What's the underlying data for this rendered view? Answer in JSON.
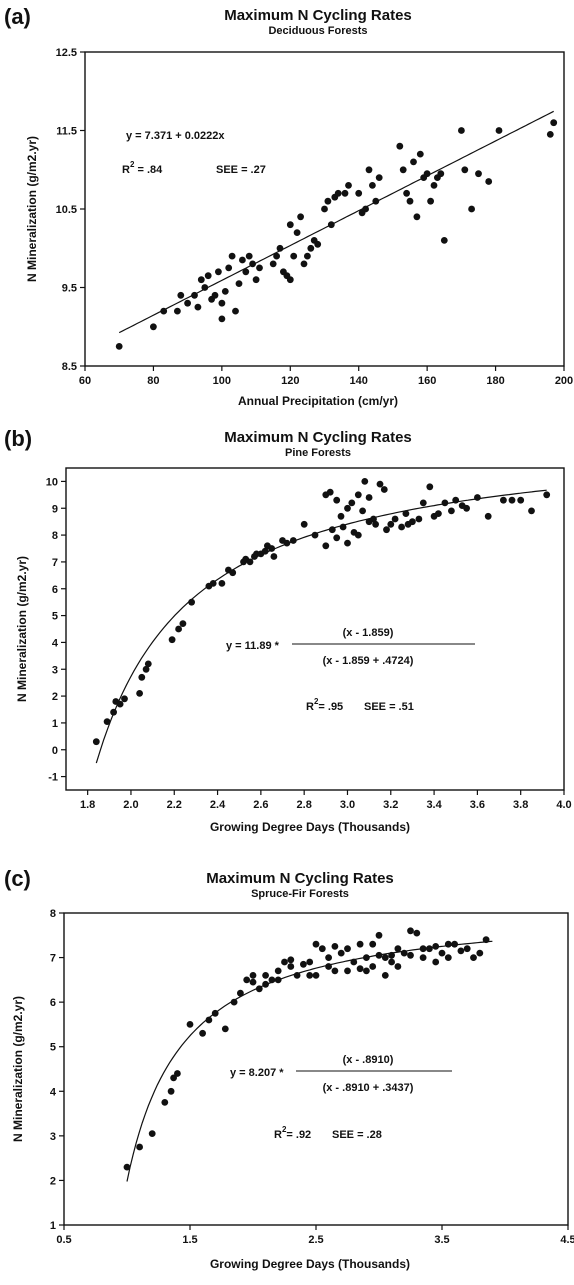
{
  "chart_data": [
    {
      "type": "scatter",
      "panel_label": "(a)",
      "title": "Maximum N Cycling Rates",
      "subtitle": "Deciduous Forests",
      "xlabel": "Annual Precipitation (cm/yr)",
      "ylabel": "N Mineralization (g/m2.yr)",
      "xlim": [
        60,
        200
      ],
      "ylim": [
        8.5,
        12.5
      ],
      "xticks": [
        60,
        80,
        100,
        120,
        140,
        160,
        180,
        200
      ],
      "yticks": [
        8.5,
        9.5,
        10.5,
        11.5,
        12.5
      ],
      "xtick_labels": [
        "60",
        "80",
        "100",
        "120",
        "140",
        "160",
        "180",
        "200"
      ],
      "ytick_labels": [
        "8.5",
        "9.5",
        "10.5",
        "11.5",
        "12.5"
      ],
      "equation": "y = 7.371 + 0.0222x",
      "r2_label": "R",
      "r2_sup": "2",
      "r2_value": " = .84",
      "see": "SEE = .27",
      "fit": {
        "kind": "linear",
        "intercept": 7.371,
        "slope": 0.0222,
        "x_range": [
          70,
          197
        ]
      },
      "points": [
        [
          70,
          8.75
        ],
        [
          80,
          9.0
        ],
        [
          83,
          9.2
        ],
        [
          87,
          9.2
        ],
        [
          88,
          9.4
        ],
        [
          90,
          9.3
        ],
        [
          92,
          9.4
        ],
        [
          93,
          9.25
        ],
        [
          94,
          9.6
        ],
        [
          95,
          9.5
        ],
        [
          96,
          9.65
        ],
        [
          97,
          9.35
        ],
        [
          98,
          9.4
        ],
        [
          99,
          9.7
        ],
        [
          100,
          9.1
        ],
        [
          100,
          9.3
        ],
        [
          101,
          9.45
        ],
        [
          102,
          9.75
        ],
        [
          103,
          9.9
        ],
        [
          104,
          9.2
        ],
        [
          105,
          9.55
        ],
        [
          106,
          9.85
        ],
        [
          107,
          9.7
        ],
        [
          108,
          9.9
        ],
        [
          109,
          9.8
        ],
        [
          110,
          9.6
        ],
        [
          111,
          9.75
        ],
        [
          115,
          9.8
        ],
        [
          116,
          9.9
        ],
        [
          117,
          10.0
        ],
        [
          118,
          9.7
        ],
        [
          119,
          9.65
        ],
        [
          120,
          9.6
        ],
        [
          120,
          10.3
        ],
        [
          121,
          9.9
        ],
        [
          122,
          10.2
        ],
        [
          123,
          10.4
        ],
        [
          124,
          9.8
        ],
        [
          125,
          9.9
        ],
        [
          126,
          10.0
        ],
        [
          127,
          10.1
        ],
        [
          128,
          10.05
        ],
        [
          130,
          10.5
        ],
        [
          131,
          10.6
        ],
        [
          132,
          10.3
        ],
        [
          133,
          10.65
        ],
        [
          134,
          10.7
        ],
        [
          136,
          10.7
        ],
        [
          137,
          10.8
        ],
        [
          140,
          10.7
        ],
        [
          141,
          10.45
        ],
        [
          142,
          10.5
        ],
        [
          143,
          11.0
        ],
        [
          144,
          10.8
        ],
        [
          145,
          10.6
        ],
        [
          146,
          10.9
        ],
        [
          152,
          11.3
        ],
        [
          153,
          11.0
        ],
        [
          154,
          10.7
        ],
        [
          155,
          10.6
        ],
        [
          156,
          11.1
        ],
        [
          157,
          10.4
        ],
        [
          158,
          11.2
        ],
        [
          159,
          10.9
        ],
        [
          160,
          10.95
        ],
        [
          161,
          10.6
        ],
        [
          162,
          10.8
        ],
        [
          163,
          10.9
        ],
        [
          164,
          10.95
        ],
        [
          165,
          10.1
        ],
        [
          170,
          11.5
        ],
        [
          171,
          11.0
        ],
        [
          173,
          10.5
        ],
        [
          175,
          10.95
        ],
        [
          178,
          10.85
        ],
        [
          181,
          11.5
        ],
        [
          196,
          11.45
        ],
        [
          197,
          11.6
        ]
      ]
    },
    {
      "type": "scatter",
      "panel_label": "(b)",
      "title": "Maximum N Cycling Rates",
      "subtitle": "Pine Forests",
      "xlabel": "Growing Degree Days (Thousands)",
      "ylabel": "N Mineralization (g/m2.yr)",
      "xlim": [
        1.7,
        4.0
      ],
      "ylim": [
        -1.5,
        10.5
      ],
      "xticks": [
        1.8,
        2.0,
        2.2,
        2.4,
        2.6,
        2.8,
        3.0,
        3.2,
        3.4,
        3.6,
        3.8,
        4.0
      ],
      "yticks": [
        -1,
        0,
        1,
        2,
        3,
        4,
        5,
        6,
        7,
        8,
        9,
        10
      ],
      "xtick_labels": [
        "1.8",
        "2.0",
        "2.2",
        "2.4",
        "2.6",
        "2.8",
        "3.0",
        "3.2",
        "3.4",
        "3.6",
        "3.8",
        "4.0"
      ],
      "ytick_labels": [
        "-1",
        "0",
        "1",
        "2",
        "3",
        "4",
        "5",
        "6",
        "7",
        "8",
        "9",
        "10"
      ],
      "equation_lhs": "y = 11.89 *",
      "equation_num": "(x - 1.859)",
      "equation_den": "(x - 1.859 + .4724)",
      "r2_label": "R",
      "r2_sup": "2",
      "r2_value": "= .95",
      "see": "SEE = .51",
      "fit": {
        "kind": "hyperbolic",
        "a": 11.89,
        "x0": 1.859,
        "k": 0.4724,
        "x_range": [
          1.84,
          3.92
        ]
      },
      "points": [
        [
          1.84,
          0.3
        ],
        [
          1.89,
          1.05
        ],
        [
          1.92,
          1.4
        ],
        [
          1.93,
          1.8
        ],
        [
          1.95,
          1.7
        ],
        [
          1.97,
          1.9
        ],
        [
          2.04,
          2.1
        ],
        [
          2.05,
          2.7
        ],
        [
          2.07,
          3.0
        ],
        [
          2.08,
          3.2
        ],
        [
          2.19,
          4.1
        ],
        [
          2.22,
          4.5
        ],
        [
          2.24,
          4.7
        ],
        [
          2.28,
          5.5
        ],
        [
          2.36,
          6.1
        ],
        [
          2.38,
          6.2
        ],
        [
          2.42,
          6.2
        ],
        [
          2.45,
          6.7
        ],
        [
          2.47,
          6.6
        ],
        [
          2.52,
          7.0
        ],
        [
          2.53,
          7.1
        ],
        [
          2.55,
          7.0
        ],
        [
          2.57,
          7.2
        ],
        [
          2.58,
          7.3
        ],
        [
          2.6,
          7.3
        ],
        [
          2.62,
          7.4
        ],
        [
          2.63,
          7.6
        ],
        [
          2.65,
          7.5
        ],
        [
          2.66,
          7.2
        ],
        [
          2.7,
          7.8
        ],
        [
          2.72,
          7.7
        ],
        [
          2.75,
          7.8
        ],
        [
          2.8,
          8.4
        ],
        [
          2.85,
          8.0
        ],
        [
          2.9,
          9.5
        ],
        [
          2.92,
          9.6
        ],
        [
          2.95,
          9.3
        ],
        [
          2.97,
          8.7
        ],
        [
          3.0,
          9.0
        ],
        [
          3.02,
          9.2
        ],
        [
          3.05,
          9.5
        ],
        [
          3.08,
          10.0
        ],
        [
          3.1,
          9.4
        ],
        [
          3.12,
          8.6
        ],
        [
          3.15,
          9.9
        ],
        [
          3.17,
          9.7
        ],
        [
          3.2,
          8.4
        ],
        [
          3.22,
          8.6
        ],
        [
          3.25,
          8.3
        ],
        [
          3.27,
          8.8
        ],
        [
          3.3,
          8.5
        ],
        [
          3.35,
          9.2
        ],
        [
          3.38,
          9.8
        ],
        [
          3.4,
          8.7
        ],
        [
          3.45,
          9.2
        ],
        [
          3.5,
          9.3
        ],
        [
          3.55,
          9.0
        ],
        [
          3.6,
          9.4
        ],
        [
          3.65,
          8.7
        ],
        [
          3.72,
          9.3
        ],
        [
          3.76,
          9.3
        ],
        [
          3.8,
          9.3
        ],
        [
          3.85,
          8.9
        ],
        [
          3.92,
          9.5
        ],
        [
          2.9,
          7.6
        ],
        [
          2.95,
          7.9
        ],
        [
          3.0,
          7.7
        ],
        [
          3.03,
          8.1
        ],
        [
          3.05,
          8.0
        ],
        [
          2.93,
          8.2
        ],
        [
          3.1,
          8.5
        ],
        [
          3.13,
          8.4
        ],
        [
          3.18,
          8.2
        ],
        [
          3.28,
          8.4
        ],
        [
          3.33,
          8.6
        ],
        [
          3.42,
          8.8
        ],
        [
          3.48,
          8.9
        ],
        [
          3.53,
          9.1
        ],
        [
          2.98,
          8.3
        ],
        [
          3.07,
          8.9
        ]
      ]
    },
    {
      "type": "scatter",
      "panel_label": "(c)",
      "title": "Maximum N Cycling Rates",
      "subtitle": "Spruce-Fir Forests",
      "xlabel": "Growing Degree Days (Thousands)",
      "ylabel": "N Mineralization (g/m2.yr)",
      "xlim": [
        0.5,
        4.5
      ],
      "ylim": [
        1,
        8
      ],
      "xticks": [
        0.5,
        1.5,
        2.5,
        3.5,
        4.5
      ],
      "yticks": [
        1,
        2,
        3,
        4,
        5,
        6,
        7,
        8
      ],
      "xtick_labels": [
        "0.5",
        "1.5",
        "2.5",
        "3.5",
        "4.5"
      ],
      "ytick_labels": [
        "1",
        "2",
        "3",
        "4",
        "5",
        "6",
        "7",
        "8"
      ],
      "equation_lhs": "y = 8.207 *",
      "equation_num": "(x - .8910)",
      "equation_den": "(x - .8910 + .3437)",
      "r2_label": "R",
      "r2_sup": "2",
      "r2_value": "= .92",
      "see": "SEE = .28",
      "fit": {
        "kind": "hyperbolic",
        "a": 8.207,
        "x0": 0.891,
        "k": 0.3437,
        "x_range": [
          1.0,
          3.9
        ]
      },
      "points": [
        [
          1.0,
          2.3
        ],
        [
          1.1,
          2.75
        ],
        [
          1.2,
          3.05
        ],
        [
          1.3,
          3.75
        ],
        [
          1.35,
          4.0
        ],
        [
          1.37,
          4.3
        ],
        [
          1.4,
          4.4
        ],
        [
          1.5,
          5.5
        ],
        [
          1.6,
          5.3
        ],
        [
          1.65,
          5.6
        ],
        [
          1.7,
          5.75
        ],
        [
          1.78,
          5.4
        ],
        [
          1.85,
          6.0
        ],
        [
          1.9,
          6.2
        ],
        [
          1.95,
          6.5
        ],
        [
          2.0,
          6.6
        ],
        [
          2.05,
          6.3
        ],
        [
          2.1,
          6.4
        ],
        [
          2.15,
          6.5
        ],
        [
          2.2,
          6.7
        ],
        [
          2.25,
          6.9
        ],
        [
          2.3,
          6.8
        ],
        [
          2.35,
          6.6
        ],
        [
          2.4,
          6.85
        ],
        [
          2.45,
          6.9
        ],
        [
          2.5,
          7.3
        ],
        [
          2.55,
          7.2
        ],
        [
          2.6,
          7.0
        ],
        [
          2.65,
          6.7
        ],
        [
          2.7,
          7.1
        ],
        [
          2.75,
          7.2
        ],
        [
          2.8,
          6.9
        ],
        [
          2.85,
          7.3
        ],
        [
          2.9,
          7.0
        ],
        [
          2.95,
          6.8
        ],
        [
          3.0,
          7.5
        ],
        [
          3.05,
          7.0
        ],
        [
          3.1,
          6.9
        ],
        [
          3.15,
          7.2
        ],
        [
          3.2,
          7.1
        ],
        [
          3.25,
          7.6
        ],
        [
          3.3,
          7.55
        ],
        [
          3.35,
          7.0
        ],
        [
          3.4,
          7.2
        ],
        [
          3.45,
          6.9
        ],
        [
          3.5,
          7.1
        ],
        [
          3.55,
          7.0
        ],
        [
          3.6,
          7.3
        ],
        [
          3.7,
          7.2
        ],
        [
          3.8,
          7.1
        ],
        [
          3.85,
          7.4
        ],
        [
          2.2,
          6.5
        ],
        [
          2.3,
          6.95
        ],
        [
          2.45,
          6.6
        ],
        [
          2.5,
          6.6
        ],
        [
          2.6,
          6.8
        ],
        [
          2.75,
          6.7
        ],
        [
          2.85,
          6.75
        ],
        [
          2.95,
          7.3
        ],
        [
          3.05,
          6.6
        ],
        [
          3.15,
          6.8
        ],
        [
          3.25,
          7.05
        ],
        [
          3.35,
          7.2
        ],
        [
          3.45,
          7.25
        ],
        [
          3.55,
          7.3
        ],
        [
          3.65,
          7.15
        ],
        [
          3.75,
          7.0
        ],
        [
          2.0,
          6.45
        ],
        [
          2.1,
          6.6
        ],
        [
          2.65,
          7.25
        ],
        [
          2.9,
          6.7
        ],
        [
          3.0,
          7.05
        ],
        [
          3.1,
          7.05
        ]
      ]
    }
  ]
}
